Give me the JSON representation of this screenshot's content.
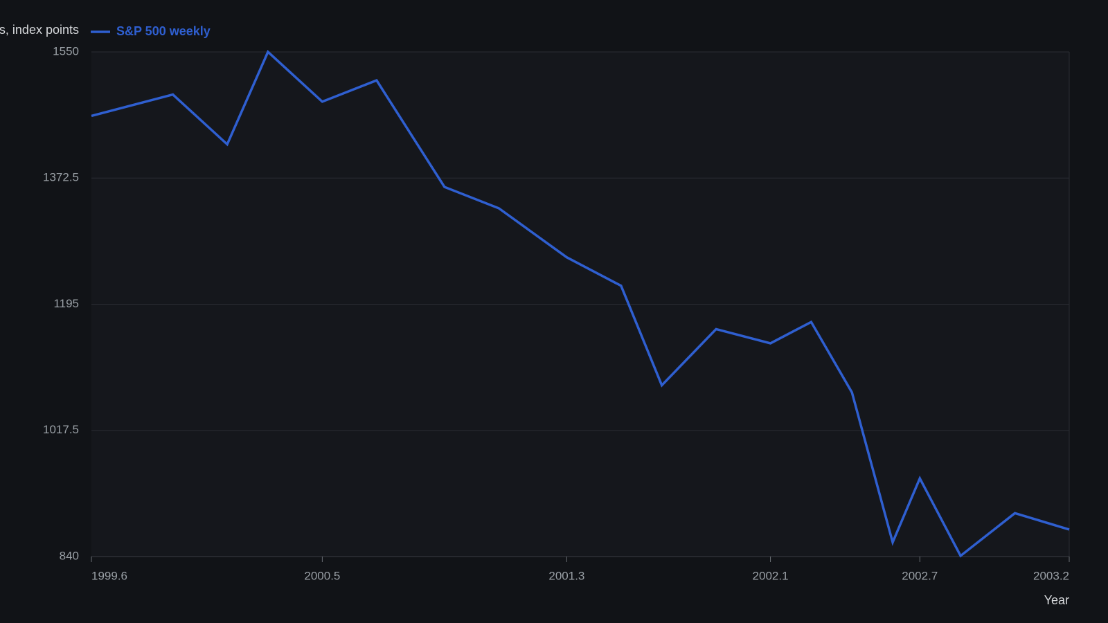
{
  "chart_data": {
    "type": "line",
    "y_label": "s, index points",
    "x_label": "Year",
    "x": [
      1999.6,
      1999.9,
      2000.1,
      2000.25,
      2000.45,
      2000.65,
      2000.9,
      2001.1,
      2001.35,
      2001.55,
      2001.7,
      2001.9,
      2002.1,
      2002.25,
      2002.4,
      2002.55,
      2002.65,
      2002.8,
      2003.0,
      2003.2
    ],
    "series": [
      {
        "name": "S&P 500 weekly",
        "color": "#2f5fd0",
        "values": [
          1460,
          1490,
          1420,
          1550,
          1480,
          1510,
          1360,
          1330,
          1261,
          1221,
          1081,
          1160,
          1140,
          1170,
          1071,
          860,
          950,
          841,
          901,
          878
        ]
      }
    ],
    "xlim": [
      1999.6,
      2003.2
    ],
    "xticks": [
      1999.6,
      {
        "value": 2000.45,
        "label": "2000.5"
      },
      {
        "value": 2001.35,
        "label": "2001.3"
      },
      2002.1,
      {
        "value": 2002.65,
        "label": "2002.7"
      },
      2003.2
    ],
    "ylim": [
      840,
      1550
    ],
    "yticks": [
      840,
      1017.5,
      1195,
      1372.5,
      1550
    ],
    "grid": true,
    "legend": "top-left"
  }
}
